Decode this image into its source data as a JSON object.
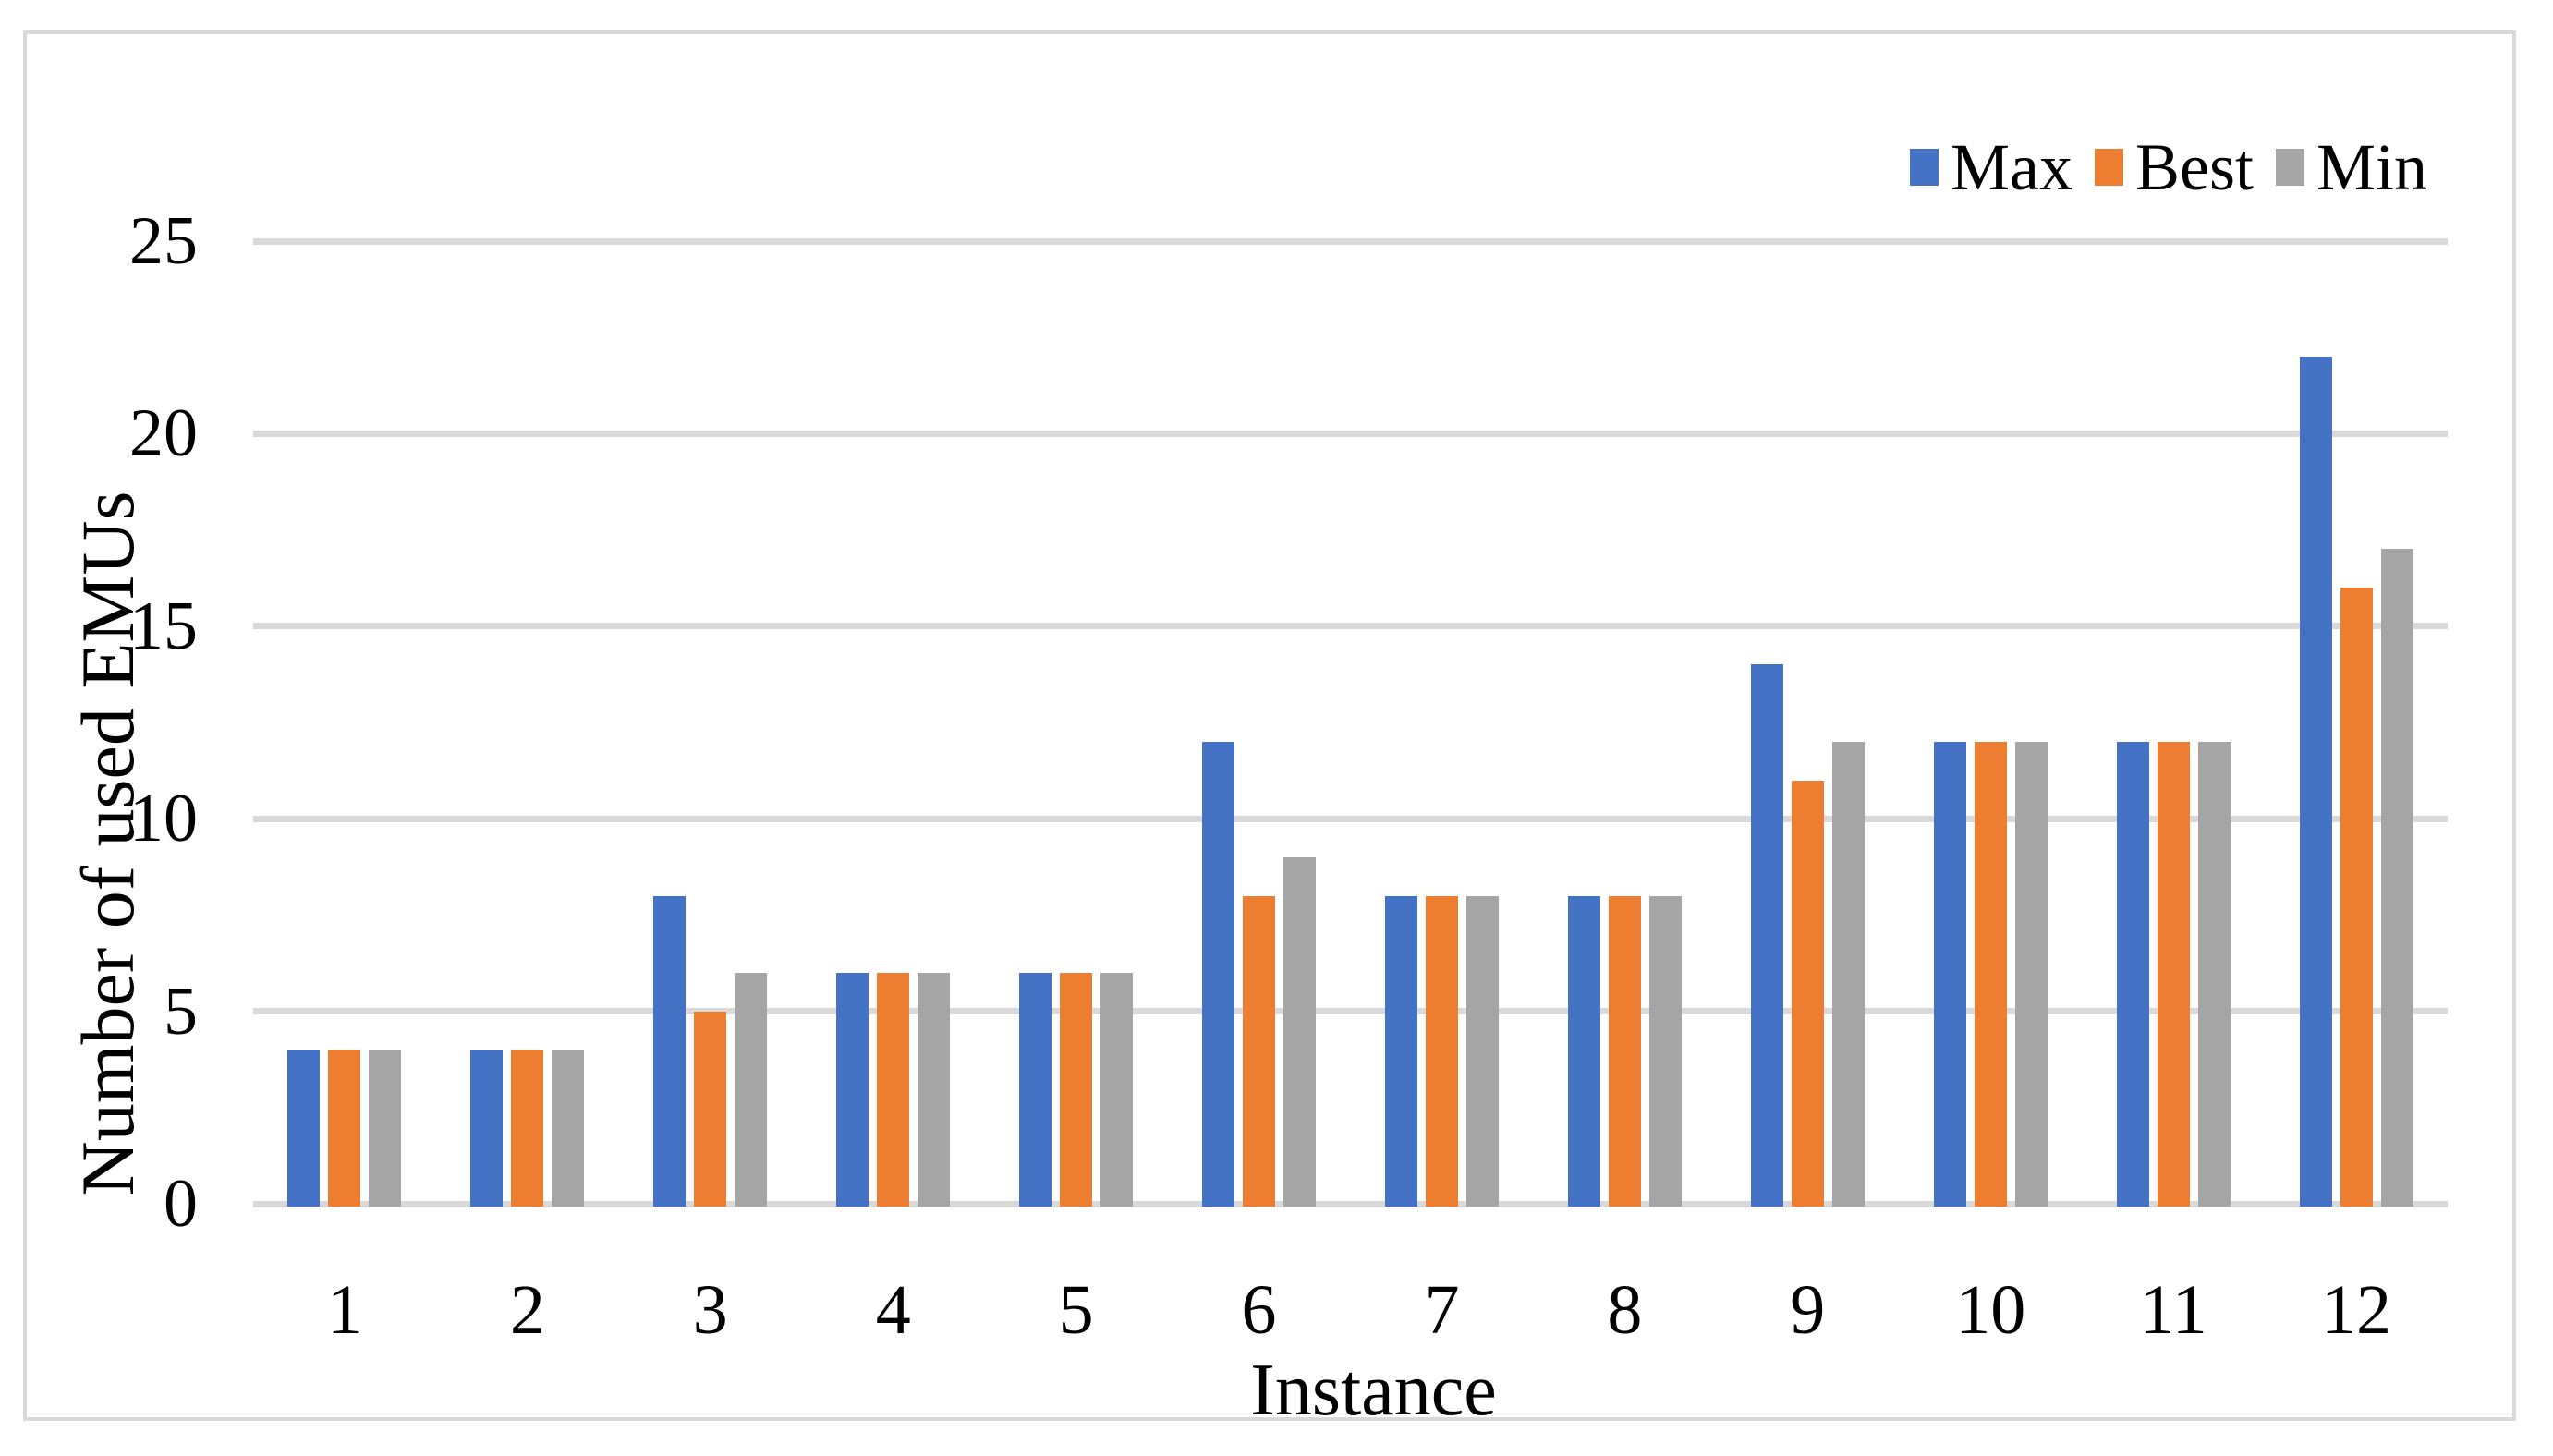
{
  "chart_data": {
    "type": "bar",
    "title": "",
    "xlabel": "Instance",
    "ylabel": "Number of used EMUs",
    "categories": [
      "1",
      "2",
      "3",
      "4",
      "5",
      "6",
      "7",
      "8",
      "9",
      "10",
      "11",
      "12"
    ],
    "series": [
      {
        "name": "Max",
        "color": "#4472C4",
        "values": [
          4,
          4,
          8,
          6,
          6,
          12,
          8,
          8,
          14,
          12,
          12,
          22
        ]
      },
      {
        "name": "Best",
        "color": "#ED7D31",
        "values": [
          4,
          4,
          5,
          6,
          6,
          8,
          8,
          8,
          11,
          12,
          12,
          16
        ]
      },
      {
        "name": "Min",
        "color": "#A5A5A5",
        "values": [
          4,
          4,
          6,
          6,
          6,
          9,
          8,
          8,
          12,
          12,
          12,
          17
        ]
      }
    ],
    "ylim": [
      0,
      25
    ],
    "yticks": [
      0,
      5,
      10,
      15,
      20,
      25
    ],
    "grid": true,
    "gridline_color": "#D9D9D9",
    "border_color": "#D9D9D9",
    "legend_position": "top-right"
  }
}
